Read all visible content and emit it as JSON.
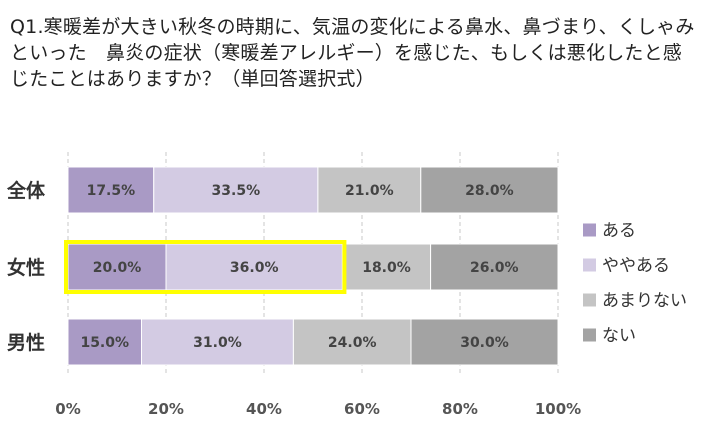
{
  "question": "Q1.寒暖差が大きい秋冬の時期に、気温の変化による鼻水、鼻づまり、くしゃみといった　鼻炎の症状（寒暖差アレルギー）を感じた、もしくは悪化したと感じたことはありますか？（単回答選択式）",
  "chart_data": {
    "type": "bar",
    "orientation": "horizontal",
    "stacked": "100%",
    "categories": [
      "全体",
      "女性",
      "男性"
    ],
    "series": [
      {
        "name": "ある",
        "values": [
          17.5,
          20.0,
          15.0
        ],
        "labels": [
          "17.5%",
          "20.0%",
          "15.0%"
        ],
        "color": "#a99ac5"
      },
      {
        "name": "ややある",
        "values": [
          33.5,
          36.0,
          31.0
        ],
        "labels": [
          "33.5%",
          "36.0%",
          "31.0%"
        ],
        "color": "#d3cbe3"
      },
      {
        "name": "あまりない",
        "values": [
          21.0,
          18.0,
          24.0
        ],
        "labels": [
          "21.0%",
          "18.0%",
          "24.0%"
        ],
        "color": "#c4c4c4"
      },
      {
        "name": "ない",
        "values": [
          28.0,
          26.0,
          30.0
        ],
        "labels": [
          "28.0%",
          "26.0%",
          "30.0%"
        ],
        "color": "#a3a3a3"
      }
    ],
    "xlim": [
      0,
      100
    ],
    "xticks": [
      "0%",
      "20%",
      "40%",
      "60%",
      "80%",
      "100%"
    ],
    "grid": true,
    "legend": "right",
    "highlight": {
      "category": "女性",
      "series": [
        "ある",
        "ややある"
      ],
      "color": "#ffff00"
    }
  }
}
